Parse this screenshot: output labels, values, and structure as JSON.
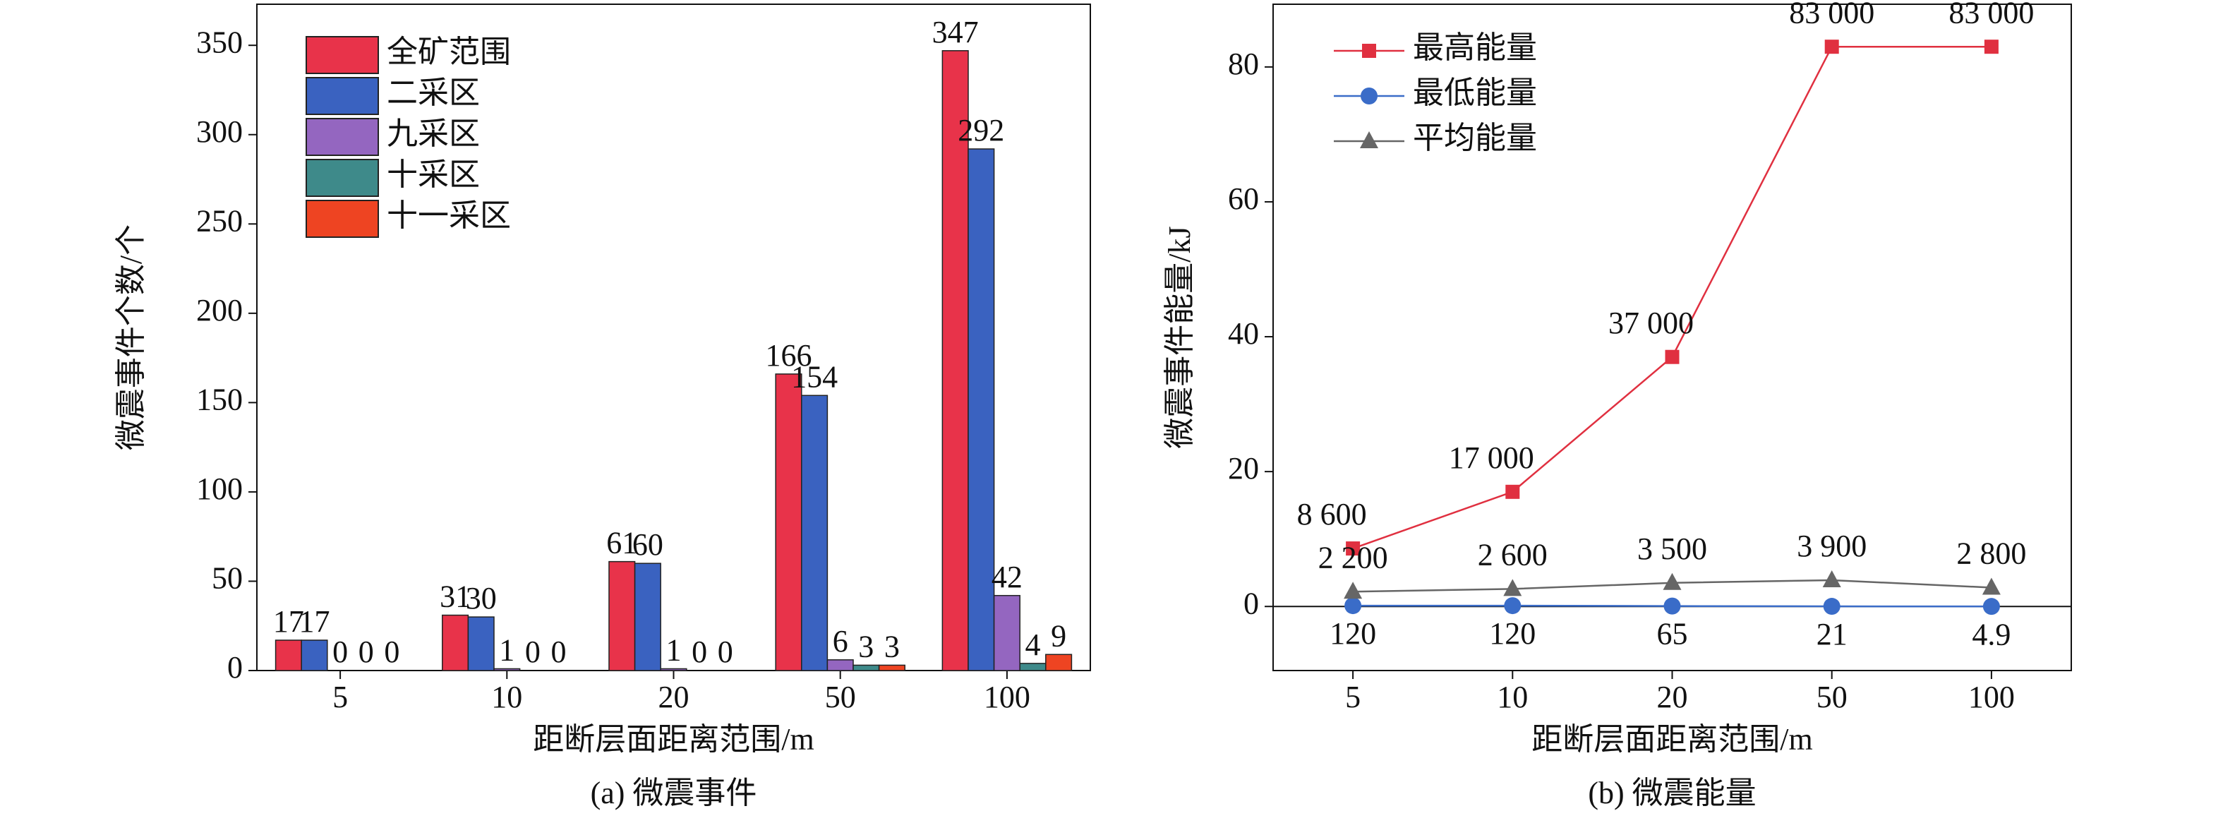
{
  "chart_data": [
    {
      "type": "bar",
      "caption": "(a) 微震事件",
      "xlabel": "距断层面距离范围/m",
      "ylabel": "微震事件个数/个",
      "categories": [
        "5",
        "10",
        "20",
        "50",
        "100"
      ],
      "series": [
        {
          "name": "全矿范围",
          "color": "#e8334a",
          "values": [
            17,
            31,
            61,
            166,
            347
          ]
        },
        {
          "name": "二采区",
          "color": "#3a62c0",
          "values": [
            17,
            30,
            60,
            154,
            292
          ]
        },
        {
          "name": "九采区",
          "color": "#9466c0",
          "values": [
            0,
            1,
            1,
            6,
            42
          ]
        },
        {
          "name": "十采区",
          "color": "#3e8a8a",
          "values": [
            0,
            0,
            0,
            3,
            4
          ]
        },
        {
          "name": "十一采区",
          "color": "#ee4422",
          "values": [
            0,
            0,
            0,
            3,
            9
          ]
        }
      ],
      "ylim": [
        0,
        373
      ],
      "yticks": [
        0,
        50,
        100,
        150,
        200,
        250,
        300,
        350
      ],
      "legend": "upper left"
    },
    {
      "type": "line",
      "caption": "(b) 微震能量",
      "xlabel": "距断层面距离范围/m",
      "ylabel": "微震事件能量/kJ",
      "categories": [
        "5",
        "10",
        "20",
        "50",
        "100"
      ],
      "series": [
        {
          "name": "最高能量",
          "color": "#e03040",
          "marker": "square",
          "values": [
            8.6,
            17,
            37,
            83,
            83
          ],
          "value_labels": [
            "8 600",
            "17 000",
            "37 000",
            "83 000",
            "83 000"
          ]
        },
        {
          "name": "最低能量",
          "color": "#3a6cc8",
          "marker": "circle",
          "values": [
            0.12,
            0.12,
            0.065,
            0.021,
            0.0049
          ],
          "value_labels": [
            "120",
            "120",
            "65",
            "21",
            "4.9"
          ]
        },
        {
          "name": "平均能量",
          "color": "#666666",
          "marker": "triangle",
          "values": [
            2.2,
            2.6,
            3.5,
            3.9,
            2.8
          ],
          "value_labels": [
            "2 200",
            "2 600",
            "3 500",
            "3 900",
            "2 800"
          ]
        }
      ],
      "ylim": [
        -9.5,
        89.3
      ],
      "yticks": [
        0,
        20,
        40,
        60,
        80
      ],
      "legend": "upper left"
    }
  ]
}
